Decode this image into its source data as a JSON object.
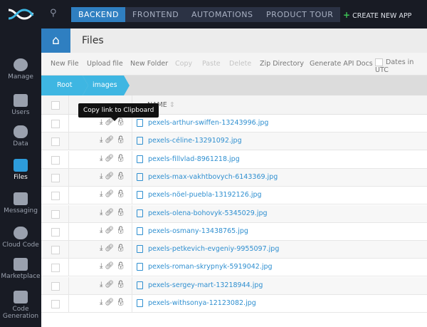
{
  "topbar": {
    "tabs": [
      "BACKEND",
      "FRONTEND",
      "AUTOMATIONS",
      "PRODUCT TOUR"
    ],
    "active_tab": "BACKEND",
    "create_label": "CREATE NEW APP"
  },
  "sidebar": {
    "items": [
      {
        "label": "Manage"
      },
      {
        "label": "Users"
      },
      {
        "label": "Data"
      },
      {
        "label": "Files"
      },
      {
        "label": "Messaging"
      },
      {
        "label": "Cloud Code"
      },
      {
        "label": "Marketplace"
      },
      {
        "label": "Code Generation"
      }
    ],
    "active": "Files"
  },
  "header": {
    "title": "Files"
  },
  "toolbar": {
    "new_file": "New File",
    "upload_file": "Upload file",
    "new_folder": "New Folder",
    "copy": "Copy",
    "paste": "Paste",
    "delete": "Delete",
    "zip": "Zip Directory",
    "api_docs": "Generate API Docs",
    "dates_utc": "Dates in UTC"
  },
  "breadcrumb": [
    "Root",
    "images"
  ],
  "table": {
    "name_header": "NAME",
    "tooltip": "Copy link to Clipboard",
    "files": [
      "pexels-arthur-swiffen-13243996.jpg",
      "pexels-céline-13291092.jpg",
      "pexels-fillvlad-8961218.jpg",
      "pexels-max-vakhtbovych-6143369.jpg",
      "pexels-nöel-puebla-13192126.jpg",
      "pexels-olena-bohovyk-5345029.jpg",
      "pexels-osmany-13438765.jpg",
      "pexels-petkevich-evgeniy-9955097.jpg",
      "pexels-roman-skrypnyk-5919042.jpg",
      "pexels-sergey-mart-13218944.jpg",
      "pexels-withsonya-12123082.jpg"
    ]
  },
  "colors": {
    "accent": "#2f7fc1",
    "breadcrumb": "#3eb6e2",
    "dark": "#181b24",
    "create": "#3cc154"
  }
}
